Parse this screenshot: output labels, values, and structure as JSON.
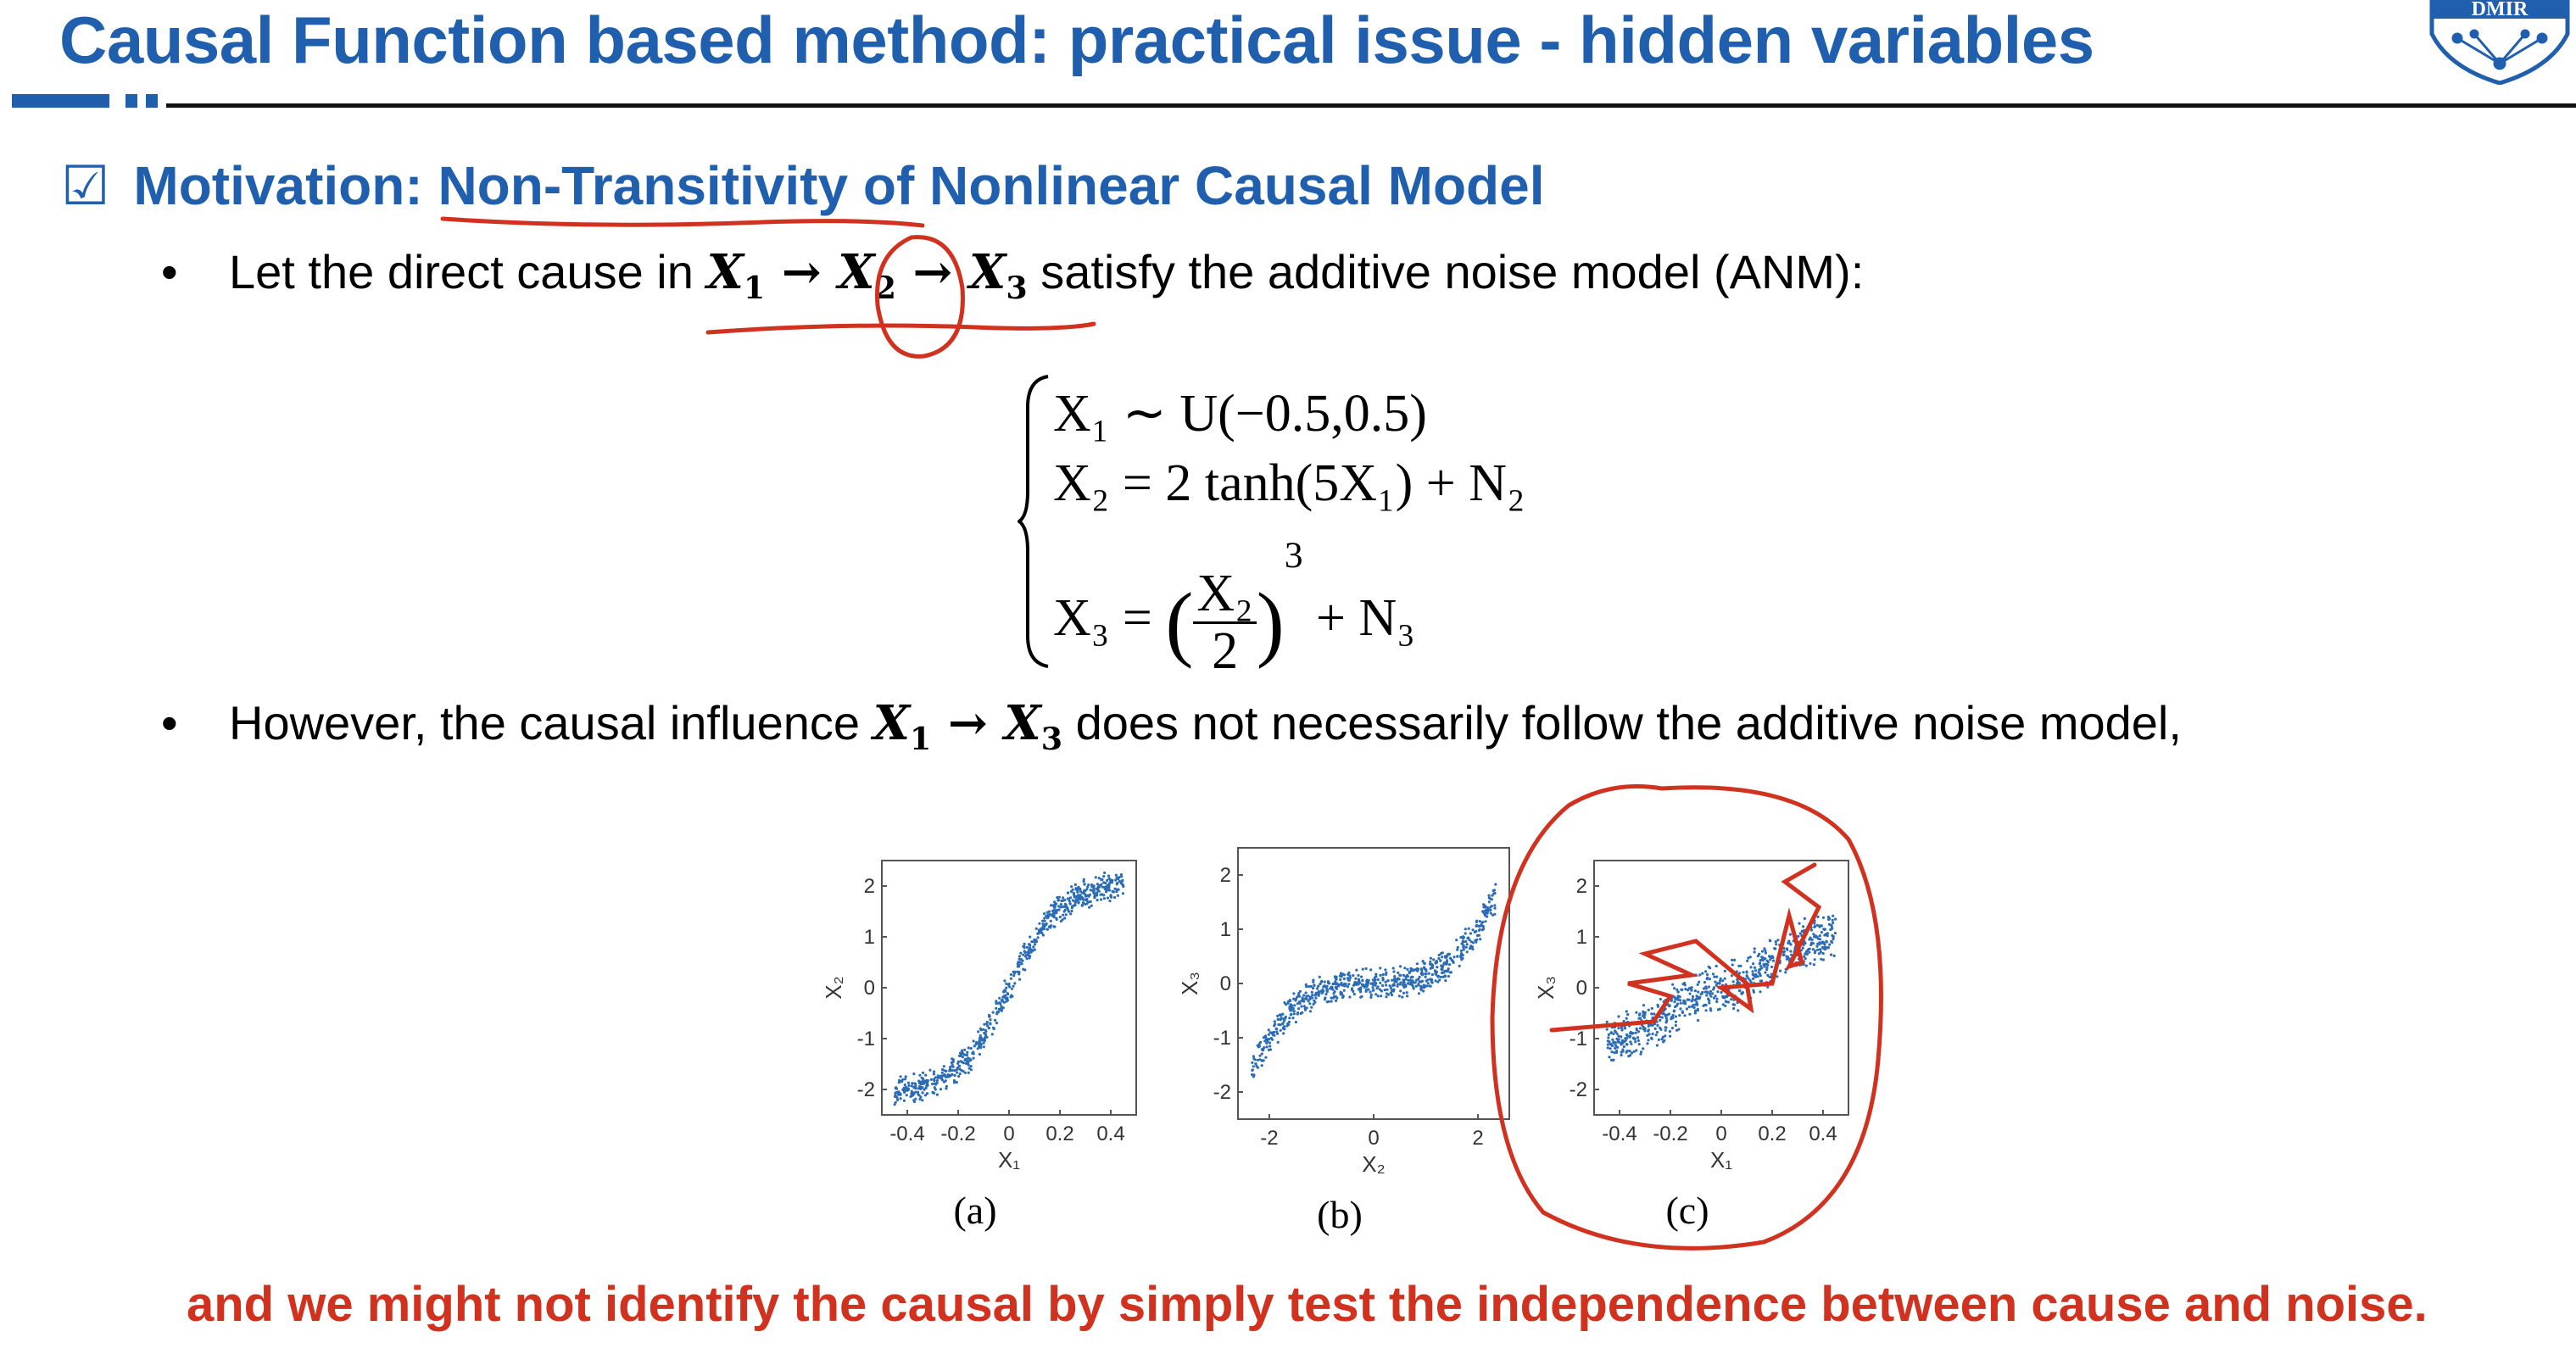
{
  "slide": {
    "title": "Causal Function based method: practical issue - hidden variables",
    "logo_text": "DMIR",
    "motivation": {
      "prefix": "Motivation: ",
      "highlight": "Non-Transitivity of Nonlinear Causal Model",
      "checkbox": "☑"
    },
    "bullet1": {
      "before": "Let the direct cause in ",
      "after": " satisfy the additive noise model (ANM):"
    },
    "equations": {
      "row1": "X₁ ∼ U(−0.5,0.5)",
      "row2": "X₂ = 2 tanh(5X₁) + N₂",
      "row3_lhs": "X₃ = ",
      "row3_num": "X₂",
      "row3_den": "2",
      "row3_exp": "3",
      "row3_rhs": " + N₃"
    },
    "bullet2": {
      "before": "However, the causal influence ",
      "after": " does not necessarily follow the additive noise model,"
    },
    "conclusion": "and we might not identify the causal by simply test the independence between cause and noise."
  },
  "chart_data": [
    {
      "type": "scatter",
      "caption": "(a)",
      "xlabel": "X₁",
      "ylabel": "X₂",
      "xlim": [
        -0.5,
        0.5
      ],
      "ylim": [
        -2.5,
        2.5
      ],
      "xticks": [
        "-0.4",
        "-0.2",
        "0",
        "0.2",
        "0.4"
      ],
      "yticks": [
        "2",
        "1",
        "0",
        "-1",
        "-2"
      ],
      "series": [
        {
          "x": [
            -0.45,
            -0.35,
            -0.25,
            -0.15,
            -0.05,
            0.05,
            0.15,
            0.25,
            0.35,
            0.45
          ],
          "y": [
            -2.0,
            -1.95,
            -1.75,
            -1.35,
            -0.5,
            0.5,
            1.35,
            1.75,
            1.95,
            2.0
          ]
        }
      ],
      "color": "#2b6cb5"
    },
    {
      "type": "scatter",
      "caption": "(b)",
      "xlabel": "X₂",
      "ylabel": "X₃",
      "xlim": [
        -2.6,
        2.6
      ],
      "ylim": [
        -2.5,
        2.5
      ],
      "xticks": [
        "-2",
        "0",
        "2"
      ],
      "yticks": [
        "2",
        "1",
        "0",
        "-1",
        "-2"
      ],
      "series": [
        {
          "x": [
            -2.4,
            -2.0,
            -1.5,
            -1.0,
            -0.5,
            0,
            0.5,
            1.0,
            1.5,
            2.0,
            2.4
          ],
          "y": [
            -1.7,
            -1.0,
            -0.42,
            -0.13,
            -0.02,
            0,
            0.02,
            0.13,
            0.42,
            1.0,
            1.7
          ]
        }
      ],
      "color": "#2b6cb5"
    },
    {
      "type": "scatter",
      "caption": "(c)",
      "xlabel": "X₁",
      "ylabel": "X₃",
      "xlim": [
        -0.5,
        0.5
      ],
      "ylim": [
        -2.5,
        2.5
      ],
      "xticks": [
        "-0.4",
        "-0.2",
        "0",
        "0.2",
        "0.4"
      ],
      "yticks": [
        "2",
        "1",
        "0",
        "-1",
        "-2"
      ],
      "series": [
        {
          "x": [
            -0.45,
            -0.35,
            -0.25,
            -0.15,
            -0.05,
            0.05,
            0.15,
            0.25,
            0.35,
            0.45
          ],
          "y": [
            -1.0,
            -0.95,
            -0.7,
            -0.3,
            -0.05,
            0.05,
            0.3,
            0.7,
            0.95,
            1.0
          ]
        }
      ],
      "color": "#2b6cb5"
    }
  ],
  "colors": {
    "title_blue": "#1f5fad",
    "annotation_red": "#d1311f",
    "scatter_blue": "#2b6cb5"
  }
}
